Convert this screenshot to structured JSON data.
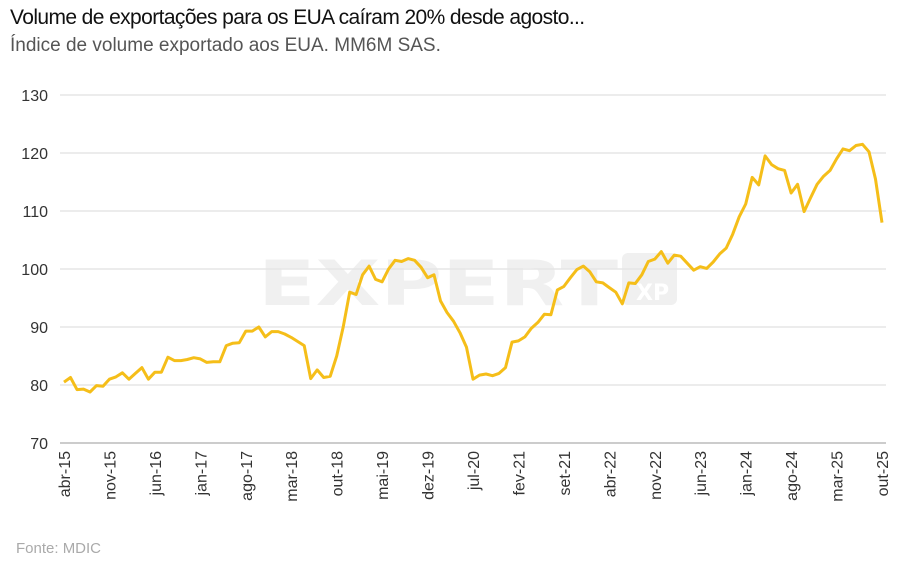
{
  "chart_data": {
    "type": "line",
    "title": "Volume de exportações para os EUA caíram 20% desde agosto...",
    "subtitle": "Índice de volume exportado aos EUA. MM6M SAS.",
    "source": "Fonte: MDIC",
    "watermark": "EXPERT XP",
    "xlabel": "",
    "ylabel": "",
    "ylim": [
      70,
      130
    ],
    "yticks": [
      70,
      80,
      90,
      100,
      110,
      120,
      130
    ],
    "grid": true,
    "color": "#F5BE19",
    "start_month": "abr-15",
    "x_tick_labels": [
      "abr-15",
      "nov-15",
      "jun-16",
      "jan-17",
      "ago-17",
      "mar-18",
      "out-18",
      "mai-19",
      "dez-19",
      "jul-20",
      "fev-21",
      "set-21",
      "abr-22",
      "nov-22",
      "jun-23",
      "jan-24",
      "ago-24",
      "mar-25",
      "out-25"
    ],
    "series": [
      {
        "name": "Índice de volume exportado aos EUA",
        "values": [
          80.5,
          81.3,
          79.2,
          79.3,
          78.8,
          79.9,
          79.8,
          81.0,
          81.4,
          82.1,
          81.0,
          82.0,
          83.0,
          81.0,
          82.2,
          82.2,
          84.8,
          84.2,
          84.2,
          84.4,
          84.7,
          84.5,
          83.9,
          84.0,
          84.0,
          86.8,
          87.2,
          87.3,
          89.3,
          89.3,
          90.0,
          88.3,
          89.2,
          89.2,
          88.8,
          88.2,
          87.5,
          86.8,
          81.1,
          82.6,
          81.3,
          81.5,
          85.0,
          90.0,
          96.0,
          95.6,
          99.0,
          100.5,
          98.2,
          97.8,
          100.0,
          101.5,
          101.3,
          101.8,
          101.5,
          100.3,
          98.5,
          99.0,
          94.5,
          92.5,
          91.0,
          89.0,
          86.5,
          81.0,
          81.7,
          81.9,
          81.6,
          82.0,
          83.0,
          87.4,
          87.6,
          88.3,
          89.8,
          90.8,
          92.2,
          92.1,
          96.4,
          97.0,
          98.5,
          99.9,
          100.5,
          99.5,
          97.8,
          97.6,
          96.8,
          96.0,
          94.0,
          97.6,
          97.5,
          99.0,
          101.3,
          101.7,
          103.0,
          101.0,
          102.4,
          102.2,
          101.0,
          99.8,
          100.4,
          100.1,
          101.2,
          102.6,
          103.6,
          106.0,
          109.0,
          111.2,
          115.8,
          114.5,
          119.5,
          118.0,
          117.3,
          117.0,
          113.1,
          114.6,
          109.9,
          112.3,
          114.6,
          116.0,
          117.0,
          119.0,
          120.7,
          120.4,
          121.3,
          121.5,
          120.2,
          115.5,
          108.0
        ]
      }
    ]
  }
}
